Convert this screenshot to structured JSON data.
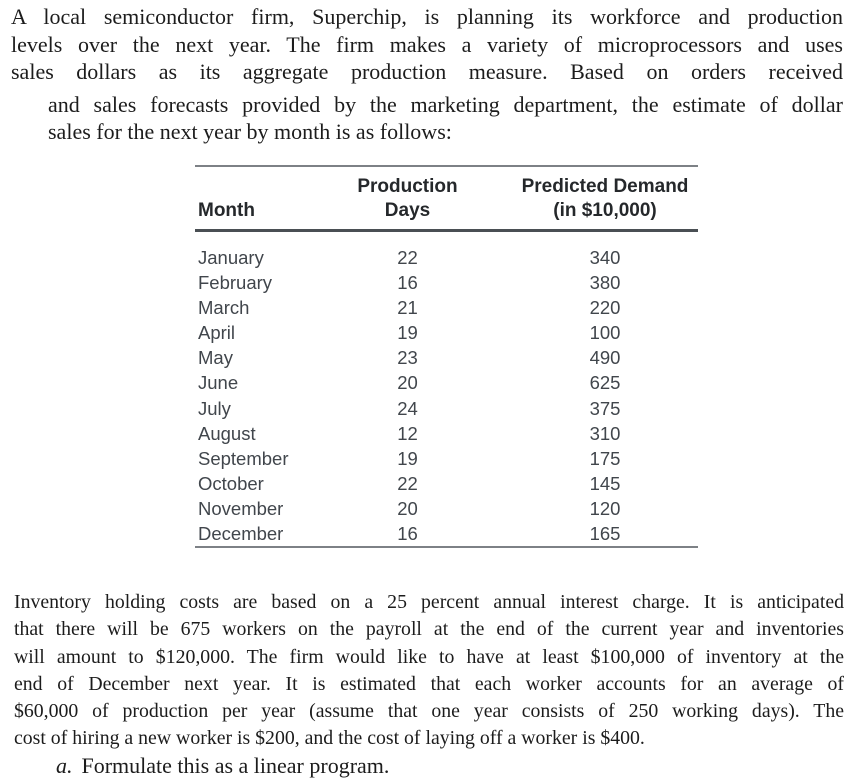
{
  "colors": {
    "background": "#ffffff",
    "body_text": "#1c1c1c",
    "table_text": "#41464c",
    "table_header_text": "#25282b",
    "outer_rule": "#7d8186",
    "header_rule": "#4a4f54"
  },
  "intro": {
    "lines": [
      "A local semiconductor firm, Superchip, is planning its workforce and production",
      "levels over the next year. The firm makes a variety of microprocessors and uses",
      "sales dollars as its aggregate production measure. Based on orders received",
      "and sales forecasts provided by the marketing department, the estimate of dollar",
      "sales for the next year by month is as follows:"
    ]
  },
  "table": {
    "headers": {
      "month": "Month",
      "days": [
        "Production",
        "Days"
      ],
      "demand": [
        "Predicted Demand",
        "(in $10,000)"
      ]
    },
    "rows": [
      {
        "month": "January",
        "days": "22",
        "demand": "340"
      },
      {
        "month": "February",
        "days": "16",
        "demand": "380"
      },
      {
        "month": "March",
        "days": "21",
        "demand": "220"
      },
      {
        "month": "April",
        "days": "19",
        "demand": "100"
      },
      {
        "month": "May",
        "days": "23",
        "demand": "490"
      },
      {
        "month": "June",
        "days": "20",
        "demand": "625"
      },
      {
        "month": "July",
        "days": "24",
        "demand": "375"
      },
      {
        "month": "August",
        "days": "12",
        "demand": "310"
      },
      {
        "month": "September",
        "days": "19",
        "demand": "175"
      },
      {
        "month": "October",
        "days": "22",
        "demand": "145"
      },
      {
        "month": "November",
        "days": "20",
        "demand": "120"
      },
      {
        "month": "December",
        "days": "16",
        "demand": "165"
      }
    ]
  },
  "outro": {
    "lines": [
      "Inventory holding costs are based on a 25 percent annual interest charge. It is anticipated",
      "that there will be 675 workers on the payroll at the end of the current year and inventories",
      "will amount to $120,000. The firm would like to have at least $100,000 of inventory at the",
      "end of December next year. It is estimated that each worker accounts for an average of",
      "$60,000 of production per year (assume that one year consists of 250 working days). The",
      "cost of hiring a new worker is $200, and the cost of laying off a worker is $400."
    ]
  },
  "task": {
    "label": "a.",
    "text": "Formulate this as a linear program."
  }
}
